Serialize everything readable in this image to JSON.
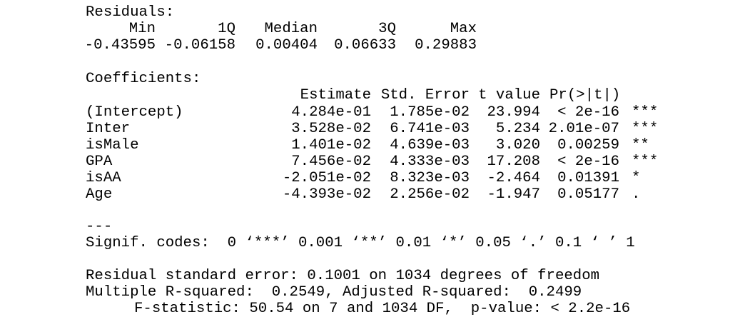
{
  "residuals": {
    "title": "Residuals:",
    "headers": [
      "Min",
      "1Q",
      "Median",
      "3Q",
      "Max"
    ],
    "values": [
      "-0.43595",
      "-0.06158",
      "0.00404",
      "0.06633",
      "0.29883"
    ]
  },
  "coefficients": {
    "title": "Coefficients:",
    "columns": [
      "Estimate",
      "Std. Error",
      "t value",
      "Pr(>|t|)"
    ],
    "rows": [
      {
        "name": "(Intercept)",
        "estimate": "4.284e-01",
        "std_error": "1.785e-02",
        "t_value": "23.994",
        "p_value": "< 2e-16",
        "signif": "***"
      },
      {
        "name": "Inter",
        "estimate": "3.528e-02",
        "std_error": "6.741e-03",
        "t_value": "5.234",
        "p_value": "2.01e-07",
        "signif": "***"
      },
      {
        "name": "isMale",
        "estimate": "1.401e-02",
        "std_error": "4.639e-03",
        "t_value": "3.020",
        "p_value": "0.00259",
        "signif": "**"
      },
      {
        "name": "GPA",
        "estimate": "7.456e-02",
        "std_error": "4.333e-03",
        "t_value": "17.208",
        "p_value": "< 2e-16",
        "signif": "***"
      },
      {
        "name": "isAA",
        "estimate": "-2.051e-02",
        "std_error": "8.323e-03",
        "t_value": "-2.464",
        "p_value": "0.01391",
        "signif": "*"
      },
      {
        "name": "Age",
        "estimate": "-4.393e-02",
        "std_error": "2.256e-02",
        "t_value": "-1.947",
        "p_value": "0.05177",
        "signif": "."
      }
    ]
  },
  "separator": "---",
  "signif_codes": "Signif. codes:  0 ‘***’ 0.001 ‘**’ 0.01 ‘*’ 0.05 ‘.’ 0.1 ‘ ’ 1",
  "summary": [
    "Residual standard error: 0.1001 on 1034 degrees of freedom",
    "Multiple R-squared:  0.2549,\tAdjusted R-squared:  0.2499",
    "F-statistic: 50.54 on 7 and 1034 DF,  p-value: < 2.2e-16"
  ]
}
